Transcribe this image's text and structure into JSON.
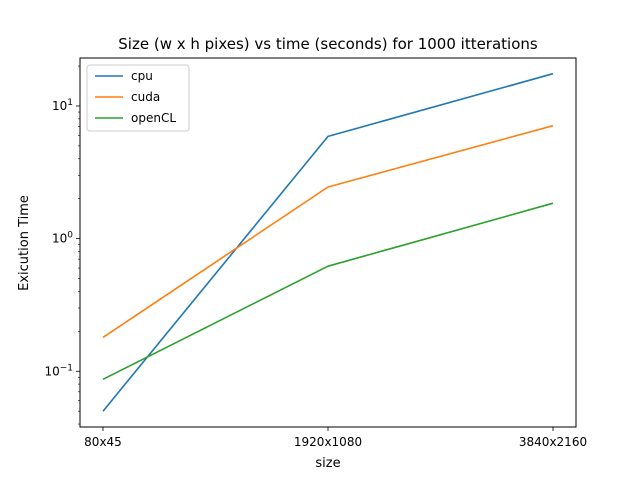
{
  "chart_data": {
    "type": "line",
    "title": "Size (w x h pixes) vs time (seconds) for 1000 itterations",
    "xlabel": "size",
    "ylabel": "Exicution Time",
    "categories": [
      "80x45",
      "1920x1080",
      "3840x2160"
    ],
    "yscale": "log",
    "ylim": [
      0.038,
      23
    ],
    "yticks": [
      {
        "value": 0.1,
        "base": "10",
        "exp": "−1"
      },
      {
        "value": 1,
        "base": "10",
        "exp": "0"
      },
      {
        "value": 10,
        "base": "10",
        "exp": "1"
      }
    ],
    "grid": false,
    "legend_position": "top-left",
    "series": [
      {
        "name": "cpu",
        "color": "#1f77b4",
        "values": [
          0.05,
          5.9,
          17.5
        ]
      },
      {
        "name": "cuda",
        "color": "#ff7f0e",
        "values": [
          0.18,
          2.45,
          7.1
        ]
      },
      {
        "name": "openCL",
        "color": "#2ca02c",
        "values": [
          0.087,
          0.62,
          1.85
        ]
      }
    ]
  }
}
